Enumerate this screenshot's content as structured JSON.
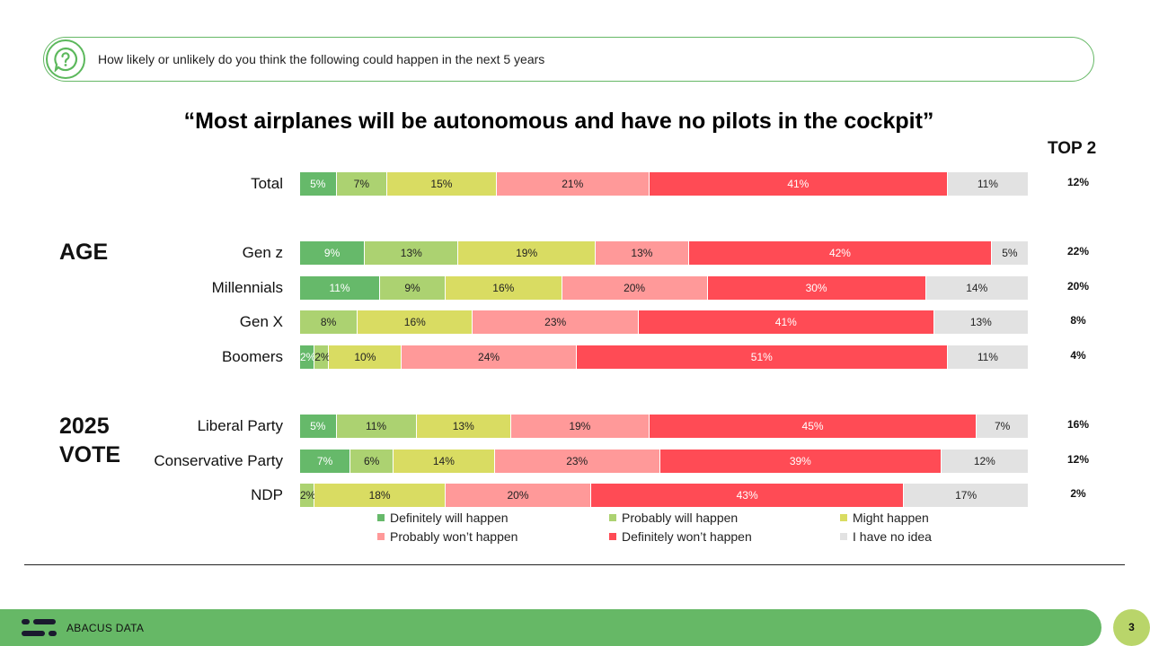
{
  "question": "How likely or unlikely do you think the following could happen in the next 5 years",
  "footer": {
    "brand": "ABACUS DATA",
    "page": "3"
  },
  "colors": {
    "definitely_will": "#66b96a",
    "probably_will": "#acd271",
    "might": "#d9dc62",
    "probably_wont": "#ff9999",
    "definitely_wont": "#ff4b55",
    "no_idea": "#e2e2e2"
  },
  "chart_data": {
    "type": "bar",
    "orientation": "horizontal",
    "stacked": true,
    "title": "“Most airplanes will be autonomous and have no pilots in the cockpit”",
    "top2_label": "TOP 2",
    "groups": [
      {
        "label": "",
        "rows": [
          "Total"
        ]
      },
      {
        "label": "AGE",
        "rows": [
          "Gen z",
          "Millennials",
          "Gen X",
          "Boomers"
        ]
      },
      {
        "label": "2025 VOTE",
        "rows": [
          "Liberal Party",
          "Conservative Party",
          "NDP"
        ]
      }
    ],
    "categories": [
      "Total",
      "Gen z",
      "Millennials",
      "Gen X",
      "Boomers",
      "Liberal Party",
      "Conservative Party",
      "NDP"
    ],
    "series": [
      {
        "name": "Definitely will happen",
        "color": "#66b96a",
        "values": [
          5,
          9,
          11,
          0,
          2,
          5,
          7,
          0
        ]
      },
      {
        "name": "Probably will happen",
        "color": "#acd271",
        "values": [
          7,
          13,
          9,
          8,
          2,
          11,
          6,
          2
        ]
      },
      {
        "name": "Might happen",
        "color": "#d9dc62",
        "values": [
          15,
          19,
          16,
          16,
          10,
          13,
          14,
          18
        ]
      },
      {
        "name": "Probably won’t happen",
        "color": "#ff9999",
        "values": [
          21,
          13,
          20,
          23,
          24,
          19,
          23,
          20
        ]
      },
      {
        "name": "Definitely won’t happen",
        "color": "#ff4b55",
        "values": [
          41,
          42,
          30,
          41,
          51,
          45,
          39,
          43
        ]
      },
      {
        "name": "I have no idea",
        "color": "#e2e2e2",
        "values": [
          11,
          5,
          14,
          13,
          11,
          7,
          12,
          17
        ]
      }
    ],
    "top2": [
      "12%",
      "22%",
      "20%",
      "8%",
      "4%",
      "16%",
      "12%",
      "2%"
    ],
    "legend_position": "bottom",
    "grid": false
  }
}
